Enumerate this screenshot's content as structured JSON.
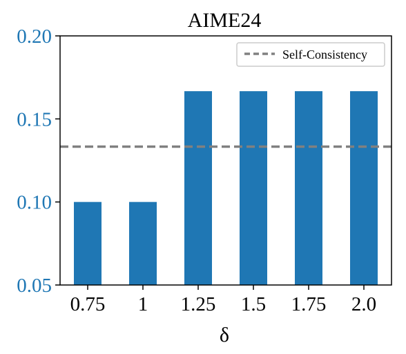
{
  "chart_data": {
    "type": "bar",
    "title": "AIME24",
    "xlabel": "δ",
    "ylabel": "",
    "categories": [
      "0.75",
      "1",
      "1.25",
      "1.5",
      "1.75",
      "2.0"
    ],
    "values": [
      0.1,
      0.1,
      0.1667,
      0.1667,
      0.1667,
      0.1667
    ],
    "ylim": [
      0.05,
      0.2
    ],
    "yticks": [
      "0.05",
      "0.10",
      "0.15",
      "0.20"
    ],
    "reference_line": {
      "name": "Self-Consistency",
      "value": 0.1333,
      "style": "dashed"
    },
    "legend_position": "top-right",
    "grid": false,
    "colors": {
      "bars": "#1f77b4",
      "reference_line": "#808080",
      "ytick_labels": "#1f77b4",
      "axes": "#000000",
      "text": "#000000"
    }
  }
}
